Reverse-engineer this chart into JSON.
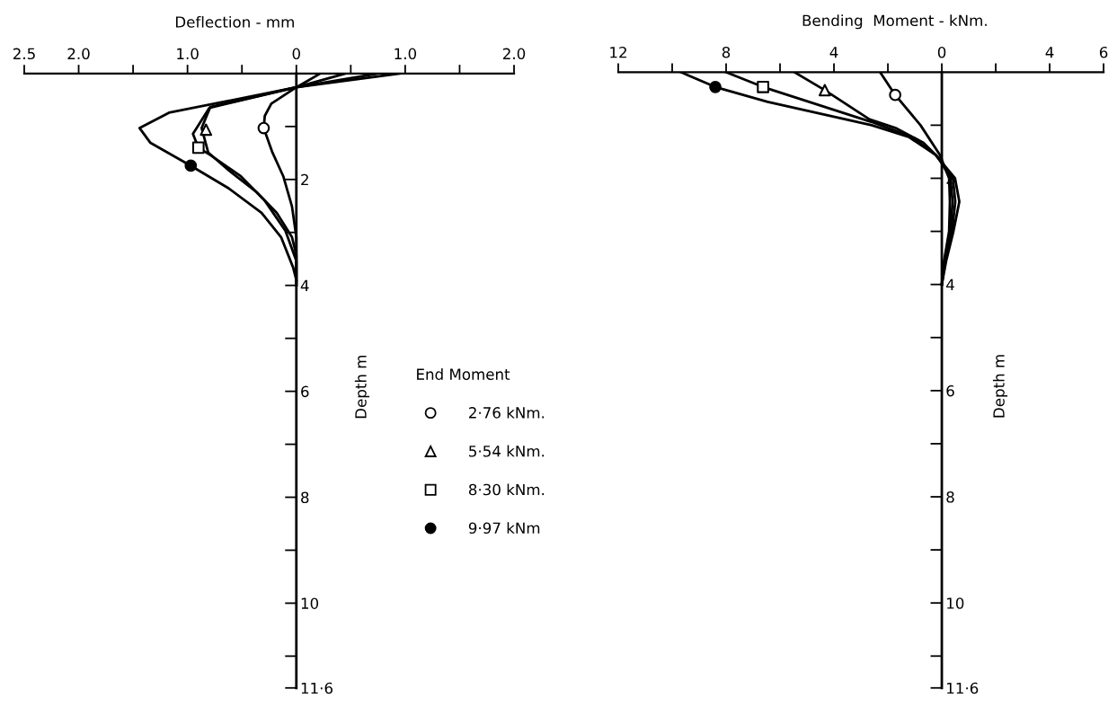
{
  "chart_data": [
    {
      "type": "line",
      "xlabel": "Deflection - mm",
      "ylabel": "Depth m",
      "legend": "right",
      "legend_title": "End Moment",
      "xlim": [
        -2.5,
        2.0
      ],
      "ylim": [
        11.6,
        0
      ],
      "xticks": [
        {
          "value": -2.5,
          "label": "2.5"
        },
        {
          "value": -2.0,
          "label": "2.0"
        },
        {
          "value": -1.5,
          "label": null
        },
        {
          "value": -1.0,
          "label": "1.0"
        },
        {
          "value": -0.5,
          "label": null
        },
        0,
        {
          "value": 0.5,
          "label": null
        },
        {
          "value": 1.0,
          "label": "1.0"
        },
        {
          "value": 1.5,
          "label": null
        },
        {
          "value": 2.0,
          "label": "2.0"
        }
      ],
      "yticks": [
        {
          "value": 1,
          "label": null
        },
        2,
        {
          "value": 3,
          "label": null
        },
        4,
        {
          "value": 5,
          "label": null
        },
        6,
        {
          "value": 7,
          "label": null
        },
        8,
        {
          "value": 9,
          "label": null
        },
        10,
        {
          "value": 11,
          "label": null
        },
        {
          "value": 11.6,
          "label": "11·6"
        }
      ],
      "series": [
        {
          "color": "#000000",
          "x": [
            0.22,
            0.0,
            -0.23,
            -0.29,
            -0.3,
            -0.22,
            -0.12,
            -0.04,
            0.0,
            0.0
          ],
          "values": [
            0.0,
            0.26,
            0.57,
            0.8,
            1.03,
            1.49,
            1.94,
            2.51,
            3.09,
            4.0
          ]
        },
        {
          "color": "#000000",
          "x": [
            0.45,
            0.0,
            -0.79,
            -0.87,
            -0.81,
            -0.62,
            -0.37,
            -0.18,
            -0.04,
            0.0,
            0.0
          ],
          "values": [
            0.0,
            0.26,
            0.63,
            1.03,
            1.49,
            1.83,
            2.23,
            2.63,
            3.09,
            3.43,
            4.0
          ]
        },
        {
          "color": "#000000",
          "x": [
            0.75,
            0.0,
            -0.8,
            -0.95,
            -0.9,
            -0.79,
            -0.51,
            -0.29,
            -0.1,
            0.0,
            0.0
          ],
          "values": [
            0.0,
            0.26,
            0.65,
            1.14,
            1.4,
            1.54,
            1.94,
            2.4,
            2.97,
            3.54,
            4.0
          ]
        },
        {
          "color": "#000000",
          "x": [
            0.95,
            0.0,
            -1.17,
            -1.44,
            -1.34,
            -0.97,
            -0.62,
            -0.32,
            -0.14,
            -0.03,
            0.0
          ],
          "values": [
            0.0,
            0.26,
            0.74,
            1.03,
            1.31,
            1.74,
            2.17,
            2.63,
            3.09,
            3.66,
            3.9
          ]
        },
        {
          "type": "scatter",
          "name": "2·76 kNm.",
          "marker": "circle",
          "color": "#ffffff",
          "x": [
            -0.3
          ],
          "values": [
            1.03
          ]
        },
        {
          "type": "scatter",
          "name": "5·54 kNm.",
          "marker": "triangle",
          "color": "#ffffff",
          "x": [
            -0.83
          ],
          "values": [
            1.06
          ]
        },
        {
          "type": "scatter",
          "name": "8·30 kNm.",
          "marker": "square",
          "color": "#ffffff",
          "x": [
            -0.9
          ],
          "values": [
            1.4
          ]
        },
        {
          "type": "scatter",
          "name": "9·97 kNm",
          "marker": "circle",
          "color": "#000000",
          "x": [
            -0.97
          ],
          "values": [
            1.74
          ]
        }
      ]
    },
    {
      "type": "line",
      "xlabel": "Bending  Moment - kNm.",
      "ylabel": "Depth m",
      "xlim": [
        -12,
        6
      ],
      "ylim": [
        11.6,
        0
      ],
      "xticks": [
        {
          "value": -12,
          "label": "12"
        },
        {
          "value": -10,
          "label": null
        },
        {
          "value": -8,
          "label": "8"
        },
        {
          "value": -6,
          "label": null
        },
        {
          "value": -4,
          "label": "4"
        },
        {
          "value": -2,
          "label": null
        },
        0,
        {
          "value": 2,
          "label": null
        },
        4,
        6
      ],
      "yticks": [
        {
          "value": 1,
          "label": null
        },
        2,
        {
          "value": 3,
          "label": null
        },
        4,
        {
          "value": 5,
          "label": null
        },
        6,
        {
          "value": 7,
          "label": null
        },
        8,
        {
          "value": 9,
          "label": null
        },
        10,
        {
          "value": 11,
          "label": null
        },
        {
          "value": 11.6,
          "label": "11·6"
        }
      ],
      "series": [
        {
          "color": "#000000",
          "x": [
            -2.29,
            -1.73,
            -0.79,
            -0.07,
            0.27,
            0.3,
            0.27,
            0.08,
            0.0
          ],
          "values": [
            0.0,
            0.43,
            1.0,
            1.56,
            2.0,
            2.44,
            3.0,
            3.56,
            4.0
          ]
        },
        {
          "color": "#000000",
          "x": [
            -5.47,
            -4.34,
            -2.68,
            -1.68,
            -0.68,
            -0.12,
            0.32,
            0.4,
            0.32,
            0.1,
            0.0
          ],
          "values": [
            0.0,
            0.34,
            0.89,
            1.06,
            1.33,
            1.61,
            2.0,
            2.44,
            3.0,
            3.56,
            4.0
          ]
        },
        {
          "color": "#000000",
          "x": [
            -8.01,
            -6.63,
            -2.6,
            -1.12,
            -0.23,
            0.41,
            0.5,
            0.38,
            0.12,
            0.0
          ],
          "values": [
            0.0,
            0.28,
            0.94,
            1.22,
            1.56,
            2.0,
            2.44,
            3.0,
            3.56,
            4.0
          ]
        },
        {
          "color": "#000000",
          "x": [
            -9.68,
            -8.4,
            -6.46,
            -2.6,
            -1.23,
            -0.23,
            0.49,
            0.65,
            0.43,
            0.16,
            0.0
          ],
          "values": [
            0.0,
            0.28,
            0.56,
            1.0,
            1.22,
            1.56,
            2.0,
            2.44,
            3.0,
            3.56,
            4.0
          ]
        },
        {
          "type": "scatter",
          "marker": "circle",
          "color": "#ffffff",
          "x": [
            -1.73
          ],
          "values": [
            0.43
          ]
        },
        {
          "type": "scatter",
          "marker": "triangle",
          "color": "#ffffff",
          "x": [
            -4.34
          ],
          "values": [
            0.34
          ]
        },
        {
          "type": "scatter",
          "marker": "square",
          "color": "#ffffff",
          "x": [
            -6.63
          ],
          "values": [
            0.28
          ]
        },
        {
          "type": "scatter",
          "marker": "circle",
          "color": "#000000",
          "x": [
            -8.4
          ],
          "values": [
            0.28
          ]
        }
      ]
    }
  ]
}
